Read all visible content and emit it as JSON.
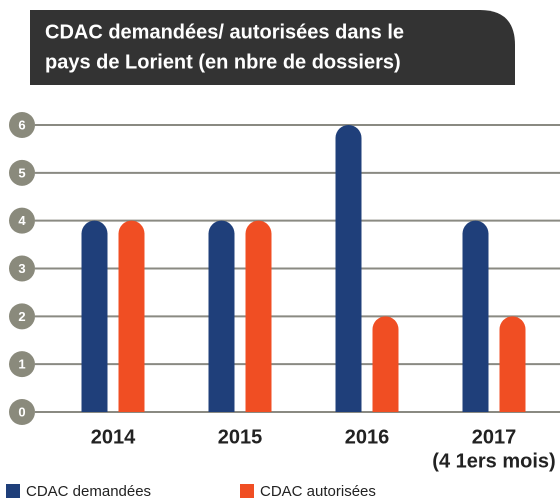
{
  "chart_data": {
    "type": "bar",
    "title_lines": [
      "CDAC demandées/ autorisées dans le",
      "pays de Lorient (en nbre de dossiers)"
    ],
    "categories": [
      "2014",
      "2015",
      "2016",
      "2017"
    ],
    "annotation": "(4 1ers mois)",
    "series": [
      {
        "name": "CDAC demandées",
        "color": "#1f3f7a",
        "values": [
          4,
          4,
          6,
          4
        ]
      },
      {
        "name": "CDAC autorisées",
        "color": "#f04e23",
        "values": [
          4,
          4,
          2,
          2
        ]
      }
    ],
    "ylim": [
      0,
      6
    ],
    "yticks": [
      0,
      1,
      2,
      3,
      4,
      5,
      6
    ],
    "grid": true
  }
}
